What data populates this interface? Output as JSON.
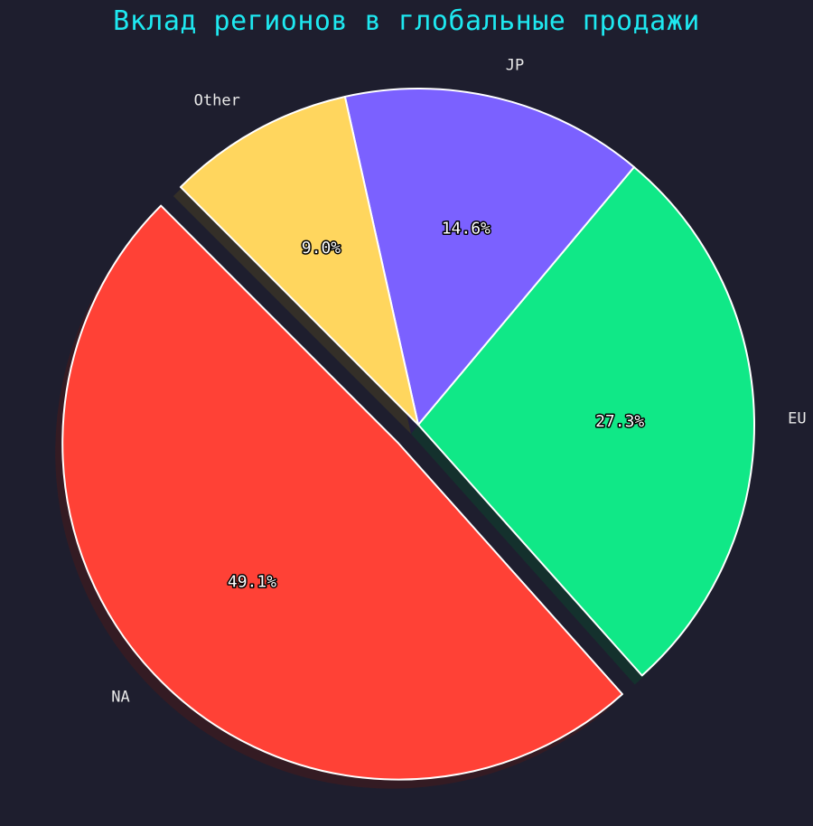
{
  "chart_data": {
    "type": "pie",
    "title": "Вклад регионов в глобальные продажи",
    "categories": [
      "NA",
      "EU",
      "JP",
      "Other"
    ],
    "values": [
      49.1,
      27.3,
      14.6,
      9.0
    ],
    "labels": [
      "49.1%",
      "27.3%",
      "14.6%",
      "9.0%"
    ],
    "colors": [
      "#ff4136",
      "#10e887",
      "#7b61ff",
      "#ffd65e"
    ],
    "exploded": [
      "NA"
    ],
    "shadow": true,
    "start_angle_deg": 135,
    "direction": "counterclockwise"
  },
  "style": {
    "background": "#1e1e2e",
    "title_color": "#1ee8f0",
    "edge_color": "#ffffff"
  }
}
